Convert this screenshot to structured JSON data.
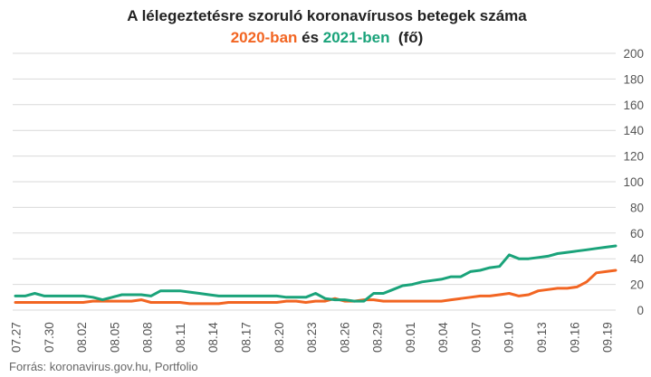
{
  "chart_data": {
    "type": "line",
    "title_line1": "A lélegeztetésre szoruló koronavírusos betegek száma",
    "title_line2": {
      "part1": "2020-ban",
      "part2": " és ",
      "part3": "2021-ben",
      "part4": "  (fő)"
    },
    "source": "Forrás: koronavirus.gov.hu, Portfolio",
    "x_tick_labels": [
      "07.27",
      "07.30",
      "08.02",
      "08.05",
      "08.08",
      "08.11",
      "08.14",
      "08.17",
      "08.20",
      "08.23",
      "08.26",
      "08.29",
      "09.01",
      "09.04",
      "09.07",
      "09.10",
      "09.13",
      "09.16",
      "09.19"
    ],
    "y_ticks": [
      0,
      20,
      40,
      60,
      80,
      100,
      120,
      140,
      160,
      180,
      200
    ],
    "ylim": [
      0,
      200
    ],
    "grid": true,
    "colors": {
      "y2020": "#f26522",
      "y2021": "#1aa37a",
      "grid": "#d9d9d9",
      "text": "#555555"
    },
    "series": [
      {
        "name": "2020-ban",
        "color": "#f26522",
        "values": [
          6,
          6,
          6,
          6,
          6,
          6,
          6,
          6,
          7,
          7,
          7,
          7,
          7,
          8,
          6,
          6,
          6,
          6,
          5,
          5,
          5,
          5,
          6,
          6,
          6,
          6,
          6,
          6,
          7,
          7,
          6,
          7,
          7,
          9,
          7,
          7,
          8,
          8,
          7,
          7,
          7,
          7,
          7,
          7,
          7,
          8,
          9,
          10,
          11,
          11,
          12,
          13,
          11,
          12,
          15,
          16,
          17,
          17,
          18,
          22,
          29,
          30,
          31
        ]
      },
      {
        "name": "2021-ben",
        "color": "#1aa37a",
        "values": [
          11,
          11,
          13,
          11,
          11,
          11,
          11,
          11,
          10,
          8,
          10,
          12,
          12,
          12,
          11,
          15,
          15,
          15,
          14,
          13,
          12,
          11,
          11,
          11,
          11,
          11,
          11,
          11,
          10,
          10,
          10,
          13,
          9,
          8,
          8,
          7,
          7,
          13,
          13,
          16,
          19,
          20,
          22,
          23,
          24,
          26,
          26,
          30,
          31,
          33,
          34,
          43,
          40,
          40,
          41,
          42,
          44,
          45,
          46,
          47,
          48,
          49,
          50
        ]
      }
    ]
  }
}
